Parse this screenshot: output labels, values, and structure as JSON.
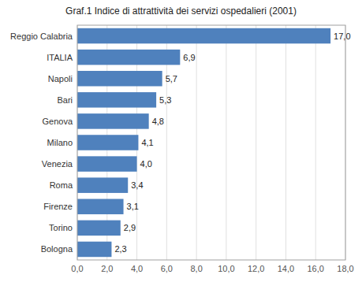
{
  "chart_data": {
    "type": "bar",
    "orientation": "horizontal",
    "title": "Graf.1 Indice di attrattività dei servizi ospedalieri (2001)",
    "categories": [
      "Reggio Calabria",
      "ITALIA",
      "Napoli",
      "Bari",
      "Genova",
      "Milano",
      "Venezia",
      "Roma",
      "Firenze",
      "Torino",
      "Bologna"
    ],
    "values": [
      17.0,
      6.9,
      5.7,
      5.3,
      4.8,
      4.1,
      4.0,
      3.4,
      3.1,
      2.9,
      2.3
    ],
    "value_labels": [
      "17,0",
      "6,9",
      "5,7",
      "5,3",
      "4,8",
      "4,1",
      "4,0",
      "3,4",
      "3,1",
      "2,9",
      "2,3"
    ],
    "data_labels": true,
    "color": "#4f81bd",
    "xlim": [
      0,
      18.0
    ],
    "xticks": [
      {
        "value": 0.0,
        "label": "0,0"
      },
      {
        "value": 2.0,
        "label": "2,0"
      },
      {
        "value": 4.0,
        "label": "4,0"
      },
      {
        "value": 6.0,
        "label": "6,0"
      },
      {
        "value": 8.0,
        "label": "8,0"
      },
      {
        "value": 10.0,
        "label": "10,0"
      },
      {
        "value": 12.0,
        "label": "12,0"
      },
      {
        "value": 14.0,
        "label": "14,0"
      },
      {
        "value": 16.0,
        "label": "16,0"
      },
      {
        "value": 18.0,
        "label": "18,0"
      }
    ],
    "grid": true
  }
}
